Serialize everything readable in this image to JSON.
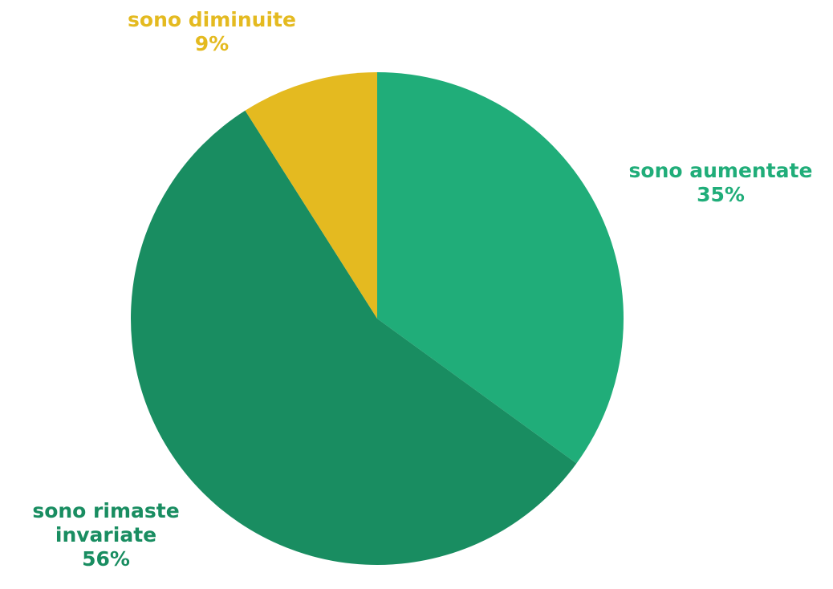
{
  "chart_data": {
    "type": "pie",
    "start_angle_deg": 0,
    "direction": "clockwise",
    "slices": [
      {
        "label": "sono aumentate",
        "label_lines": [
          "sono aumentate"
        ],
        "value": 35,
        "value_label": "35%",
        "color": "#20AD79"
      },
      {
        "label": "sono rimaste invariate",
        "label_lines": [
          "sono rimaste",
          "invariate"
        ],
        "value": 56,
        "value_label": "56%",
        "color": "#198D61"
      },
      {
        "label": "sono diminuite",
        "label_lines": [
          "sono diminuite"
        ],
        "value": 9,
        "value_label": "9%",
        "color": "#E4BA20"
      }
    ]
  }
}
